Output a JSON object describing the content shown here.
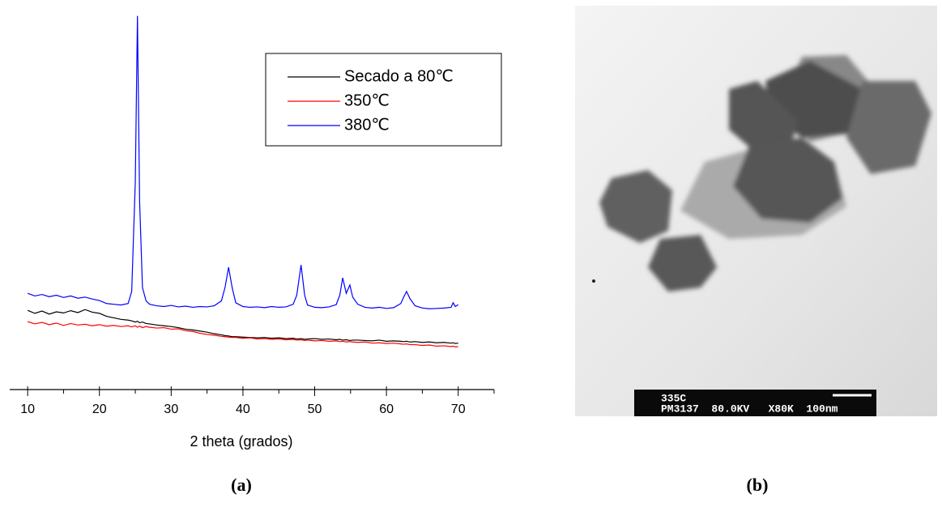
{
  "chart_data": {
    "type": "line",
    "x_label": "2 theta (grados)",
    "xlim": [
      7.5,
      75
    ],
    "xticks": [
      10,
      20,
      30,
      40,
      50,
      60,
      70
    ],
    "xminorticks": [
      15,
      25,
      35,
      45,
      55,
      65,
      75
    ],
    "ylim": [
      0,
      100
    ],
    "legend": "upper right",
    "x": [
      10,
      11,
      12,
      13,
      14,
      15,
      16,
      17,
      18,
      19,
      20,
      21,
      22,
      23,
      24,
      24.5,
      25,
      25.3,
      25.6,
      26,
      26.5,
      27,
      28,
      29,
      30,
      31,
      32,
      33,
      34,
      35,
      36,
      37,
      37.5,
      38,
      38.5,
      39,
      40,
      41,
      42,
      43,
      44,
      45,
      46,
      47,
      47.5,
      48.1,
      48.6,
      49,
      50,
      51,
      52,
      53,
      53.5,
      53.9,
      54.4,
      54.9,
      55.3,
      56,
      57,
      58,
      59,
      60,
      61,
      62,
      62.4,
      62.8,
      63.3,
      64,
      65,
      66,
      67,
      68,
      69,
      69.3,
      69.6,
      70
    ],
    "series": [
      {
        "name": "Secado a 80℃",
        "color": "#000000",
        "values": [
          21.0,
          20.2,
          20.8,
          20.0,
          20.6,
          20.3,
          20.9,
          20.4,
          21.2,
          20.5,
          20.2,
          19.4,
          19.0,
          18.6,
          18.4,
          18.2,
          17.9,
          18.1,
          17.7,
          17.9,
          17.5,
          17.4,
          17.1,
          16.9,
          16.7,
          16.4,
          16.0,
          15.8,
          15.5,
          15.2,
          14.8,
          14.5,
          14.3,
          14.2,
          14.0,
          14.0,
          13.9,
          13.8,
          13.7,
          13.8,
          13.6,
          13.7,
          13.5,
          13.6,
          13.4,
          13.5,
          13.3,
          13.4,
          13.5,
          13.3,
          13.4,
          13.2,
          13.3,
          13.1,
          13.2,
          13.0,
          13.1,
          13.1,
          13.0,
          12.9,
          13.1,
          12.8,
          12.9,
          12.8,
          12.7,
          12.8,
          12.6,
          12.7,
          12.5,
          12.6,
          12.4,
          12.5,
          12.3,
          12.4,
          12.2,
          12.3
        ]
      },
      {
        "name": "350℃",
        "color": "#ff0000",
        "values": [
          18.0,
          17.4,
          17.8,
          17.2,
          17.6,
          17.0,
          17.5,
          17.1,
          17.3,
          16.9,
          17.2,
          16.8,
          17.0,
          16.7,
          16.9,
          16.6,
          16.9,
          16.5,
          16.8,
          16.4,
          16.7,
          16.5,
          16.3,
          16.4,
          16.0,
          16.1,
          15.6,
          15.4,
          14.9,
          14.6,
          14.4,
          14.1,
          14.0,
          13.9,
          13.8,
          13.8,
          13.6,
          13.7,
          13.4,
          13.5,
          13.3,
          13.4,
          13.2,
          13.3,
          13.1,
          13.2,
          13.0,
          13.1,
          12.9,
          13.0,
          12.8,
          12.9,
          12.7,
          12.8,
          12.6,
          12.7,
          12.6,
          12.5,
          12.6,
          12.3,
          12.4,
          12.2,
          12.3,
          12.1,
          12.0,
          12.1,
          11.9,
          11.9,
          11.7,
          11.8,
          11.5,
          11.6,
          11.4,
          11.5,
          11.3,
          11.4
        ]
      },
      {
        "name": "380℃",
        "color": "#0000ff",
        "values": [
          25.5,
          24.8,
          25.2,
          24.6,
          25.0,
          24.4,
          24.8,
          24.2,
          24.5,
          24.0,
          23.6,
          22.8,
          22.6,
          22.4,
          22.8,
          26,
          55,
          99,
          50,
          27,
          23.5,
          22.6,
          22.2,
          22.0,
          22.3,
          21.9,
          22.1,
          21.8,
          22.0,
          21.9,
          22.2,
          23.5,
          27,
          32.4,
          27,
          23,
          22,
          21.8,
          21.9,
          21.7,
          22,
          21.8,
          21.9,
          22.6,
          25,
          33,
          25,
          22.4,
          21.8,
          21.7,
          21.9,
          22.5,
          25,
          29.6,
          25.5,
          27.7,
          24.5,
          22.6,
          21.8,
          21.6,
          21.8,
          21.5,
          21.7,
          22.8,
          24.5,
          26,
          24,
          22.2,
          21.6,
          21.4,
          21.5,
          21.6,
          21.8,
          23,
          22,
          22.5
        ]
      }
    ]
  },
  "panels": {
    "a": "(a)",
    "b": "(b)"
  },
  "image": {
    "caption_lines": [
      "335C",
      "PM3137  80.0KV   X80K  100nm"
    ]
  }
}
